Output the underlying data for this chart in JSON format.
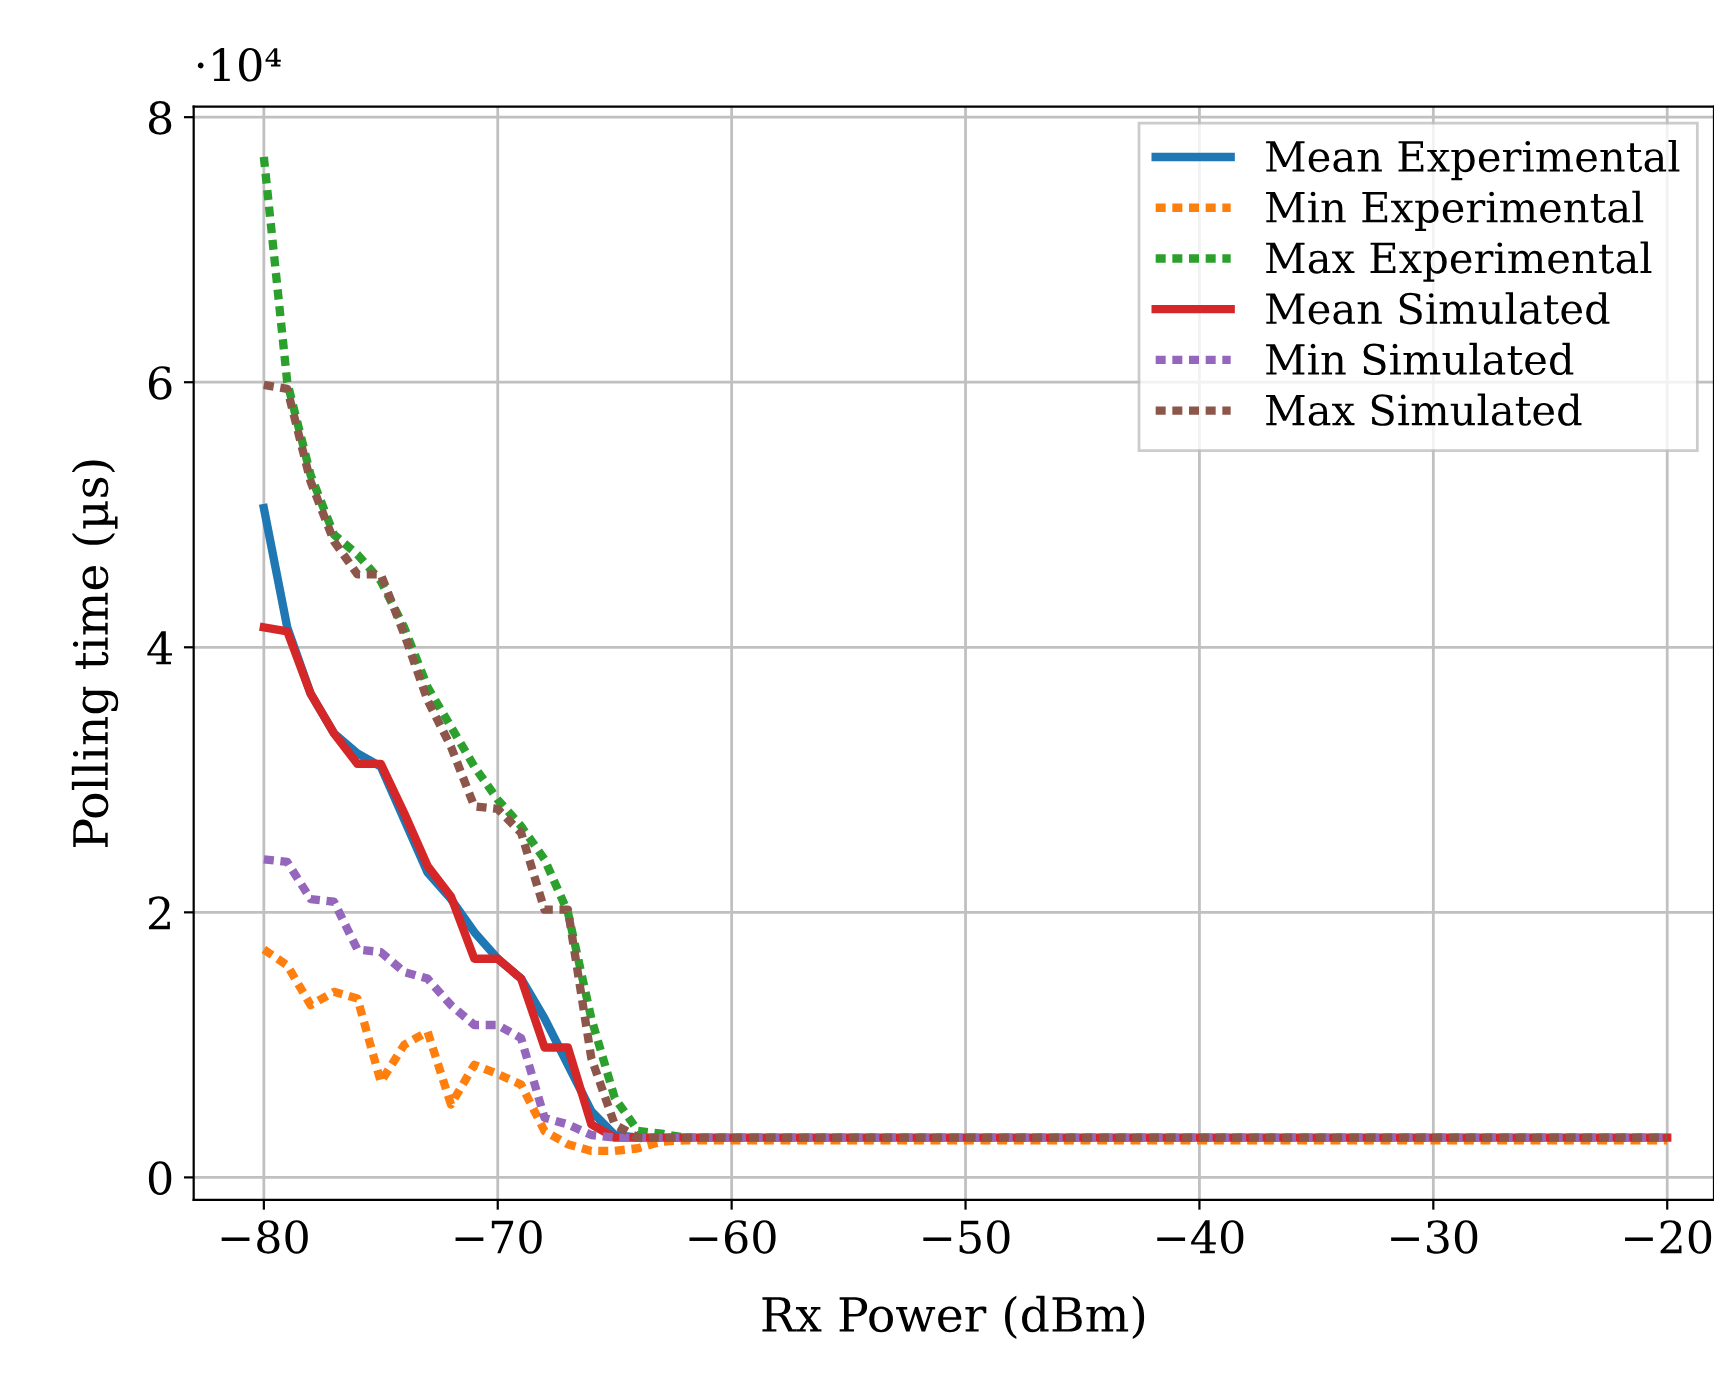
{
  "chart_data": {
    "type": "line",
    "xlabel": "Rx Power (dBm)",
    "ylabel": "Polling time (µs)",
    "annotations": [
      "·10⁴"
    ],
    "x": [
      -80,
      -79,
      -78,
      -77,
      -76,
      -75,
      -74,
      -73,
      -72,
      -71,
      -70,
      -69,
      -68,
      -67,
      -66,
      -65,
      -64,
      -63,
      -62,
      -61,
      -60,
      -59,
      -58,
      -57,
      -56,
      -55,
      -54,
      -53,
      -52,
      -51,
      -50,
      -49,
      -48,
      -47,
      -46,
      -45,
      -44,
      -43,
      -42,
      -41,
      -40,
      -39,
      -38,
      -37,
      -36,
      -35,
      -34,
      -33,
      -32,
      -31,
      -30,
      -29,
      -28,
      -27,
      -26,
      -25,
      -24,
      -23,
      -22,
      -21,
      -20
    ],
    "xlim": [
      -83,
      -18
    ],
    "ylim": [
      -0.17,
      8.08
    ],
    "xticks": [
      {
        "value": -80,
        "label": "−80"
      },
      {
        "value": -70,
        "label": "−70"
      },
      {
        "value": -60,
        "label": "−60"
      },
      {
        "value": -50,
        "label": "−50"
      },
      {
        "value": -40,
        "label": "−40"
      },
      {
        "value": -30,
        "label": "−30"
      },
      {
        "value": -20,
        "label": "−20"
      }
    ],
    "yticks": [
      0,
      2,
      4,
      6,
      8
    ],
    "grid": true,
    "legend": "top right",
    "marker": "none",
    "series": [
      {
        "name": "Mean Experimental",
        "color": "#1f77b4",
        "line_style": "solid",
        "values": [
          5.05,
          4.15,
          3.65,
          3.35,
          3.2,
          3.1,
          2.7,
          2.3,
          2.1,
          1.85,
          1.65,
          1.5,
          1.2,
          0.85,
          0.5,
          0.32,
          0.3,
          null,
          null,
          null,
          null,
          null,
          null,
          null,
          null,
          null,
          null,
          null,
          null,
          null,
          null,
          null,
          null,
          null,
          null,
          null,
          null,
          null,
          null,
          null,
          null,
          null,
          null,
          null,
          null,
          null,
          null,
          null,
          null,
          null,
          null,
          null,
          null,
          null,
          null,
          null,
          null,
          null,
          null,
          null,
          null
        ]
      },
      {
        "name": "Min Experimental",
        "color": "#ff7f0e",
        "line_style": "dashed",
        "values": [
          1.72,
          1.6,
          1.3,
          1.4,
          1.35,
          0.72,
          1.0,
          1.1,
          0.55,
          0.85,
          0.78,
          0.7,
          0.35,
          0.25,
          0.2,
          0.2,
          0.22,
          0.27,
          0.28,
          0.28,
          0.28,
          0.28,
          0.28,
          0.28,
          0.28,
          0.28,
          0.28,
          0.28,
          0.28,
          0.28,
          0.28,
          0.28,
          0.28,
          0.28,
          0.28,
          0.28,
          0.28,
          0.28,
          0.28,
          0.28,
          0.28,
          0.28,
          0.28,
          0.28,
          0.28,
          0.28,
          0.28,
          0.28,
          0.28,
          0.28,
          0.28,
          0.28,
          0.28,
          0.28,
          0.28,
          0.28,
          0.28,
          0.28,
          0.28,
          0.28,
          0.28
        ]
      },
      {
        "name": "Max Experimental",
        "color": "#2ca02c",
        "line_style": "dashed",
        "values": [
          7.7,
          6.0,
          5.3,
          4.85,
          4.7,
          4.5,
          4.15,
          3.7,
          3.4,
          3.1,
          2.85,
          2.65,
          2.4,
          2.0,
          1.2,
          0.6,
          0.35,
          0.33,
          0.3,
          null,
          null,
          null,
          null,
          null,
          null,
          null,
          null,
          null,
          null,
          null,
          null,
          null,
          null,
          null,
          null,
          null,
          null,
          null,
          null,
          null,
          null,
          null,
          null,
          null,
          null,
          null,
          null,
          null,
          null,
          null,
          null,
          null,
          null,
          null,
          null,
          null,
          null,
          null,
          null,
          null,
          null
        ]
      },
      {
        "name": "Mean Simulated",
        "color": "#d62728",
        "line_style": "solid",
        "values": [
          4.15,
          4.12,
          3.65,
          3.35,
          3.12,
          3.12,
          2.75,
          2.35,
          2.12,
          1.65,
          1.65,
          1.5,
          0.98,
          0.98,
          0.4,
          0.3,
          0.3,
          0.3,
          0.3,
          0.3,
          0.3,
          0.3,
          0.3,
          0.3,
          0.3,
          0.3,
          0.3,
          0.3,
          0.3,
          0.3,
          0.3,
          0.3,
          0.3,
          0.3,
          0.3,
          0.3,
          0.3,
          0.3,
          0.3,
          0.3,
          0.3,
          0.3,
          0.3,
          0.3,
          0.3,
          0.3,
          0.3,
          0.3,
          0.3,
          0.3,
          0.3,
          0.3,
          0.3,
          0.3,
          0.3,
          0.3,
          0.3,
          0.3,
          0.3,
          0.3,
          0.3
        ]
      },
      {
        "name": "Min Simulated",
        "color": "#9467bd",
        "line_style": "dashed",
        "values": [
          2.4,
          2.38,
          2.1,
          2.08,
          1.72,
          1.7,
          1.55,
          1.5,
          1.3,
          1.15,
          1.15,
          1.05,
          0.45,
          0.4,
          0.32,
          0.3,
          0.3,
          0.3,
          0.3,
          0.3,
          0.3,
          0.3,
          0.3,
          0.3,
          0.3,
          0.3,
          0.3,
          0.3,
          0.3,
          0.3,
          0.3,
          0.3,
          0.3,
          0.3,
          0.3,
          0.3,
          0.3,
          0.3,
          0.3,
          0.3,
          0.3,
          0.3,
          0.3,
          0.3,
          0.3,
          0.3,
          0.3,
          0.3,
          0.3,
          0.3,
          0.3,
          0.3,
          0.3,
          0.3,
          0.3,
          0.3,
          0.3,
          0.3,
          0.3,
          0.3,
          0.3
        ]
      },
      {
        "name": "Max Simulated",
        "color": "#8c564b",
        "line_style": "dashed",
        "values": [
          5.98,
          5.95,
          5.25,
          4.8,
          4.55,
          4.55,
          4.1,
          3.6,
          3.25,
          2.8,
          2.78,
          2.6,
          2.02,
          2.02,
          0.9,
          0.4,
          0.3,
          0.3,
          0.3,
          0.3,
          0.3,
          0.3,
          0.3,
          0.3,
          0.3,
          0.3,
          0.3,
          0.3,
          0.3,
          0.3,
          0.3,
          0.3,
          0.3,
          0.3,
          0.3,
          0.3,
          0.3,
          0.3,
          0.3,
          0.3,
          0.3,
          0.3,
          0.3,
          0.3,
          0.3,
          0.3,
          0.3,
          0.3,
          0.3,
          0.3,
          0.3,
          0.3,
          0.3,
          0.3,
          0.3,
          0.3,
          0.3,
          0.3,
          0.3,
          0.3,
          0.3
        ]
      }
    ]
  }
}
